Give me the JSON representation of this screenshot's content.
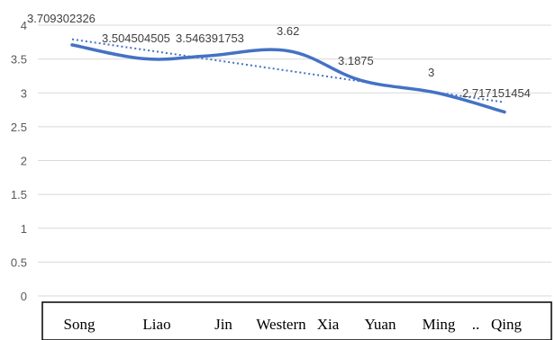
{
  "chart_data": {
    "type": "line",
    "categories": [
      "Song",
      "Liao",
      "Jin",
      "Western Xia",
      "Yuan",
      "Ming",
      "... Qing"
    ],
    "category_labels": [
      "Song",
      "Liao",
      "Jin",
      "Western",
      "Xia",
      "Yuan",
      "Ming",
      "..",
      "Qing"
    ],
    "series": [
      {
        "values": [
          3.709302326,
          3.504504505,
          3.546391753,
          3.62,
          3.1875,
          3.0,
          2.717151454
        ]
      }
    ],
    "data_labels": [
      "3.709302326",
      "3.504504505",
      "3.546391753",
      "3.62",
      "3.1875",
      "3",
      "2.717151454"
    ],
    "y_ticks": [
      "0",
      "0.5",
      "1",
      "1.5",
      "2",
      "2.5",
      "3",
      "3.5",
      "4"
    ],
    "ylim": [
      0,
      4
    ],
    "trendline": {
      "style": "dotted",
      "type": "linear"
    },
    "grid": true,
    "colors": {
      "line": "#4472C4",
      "grid": "#d9d9d9",
      "axis_box": "#000000"
    }
  }
}
